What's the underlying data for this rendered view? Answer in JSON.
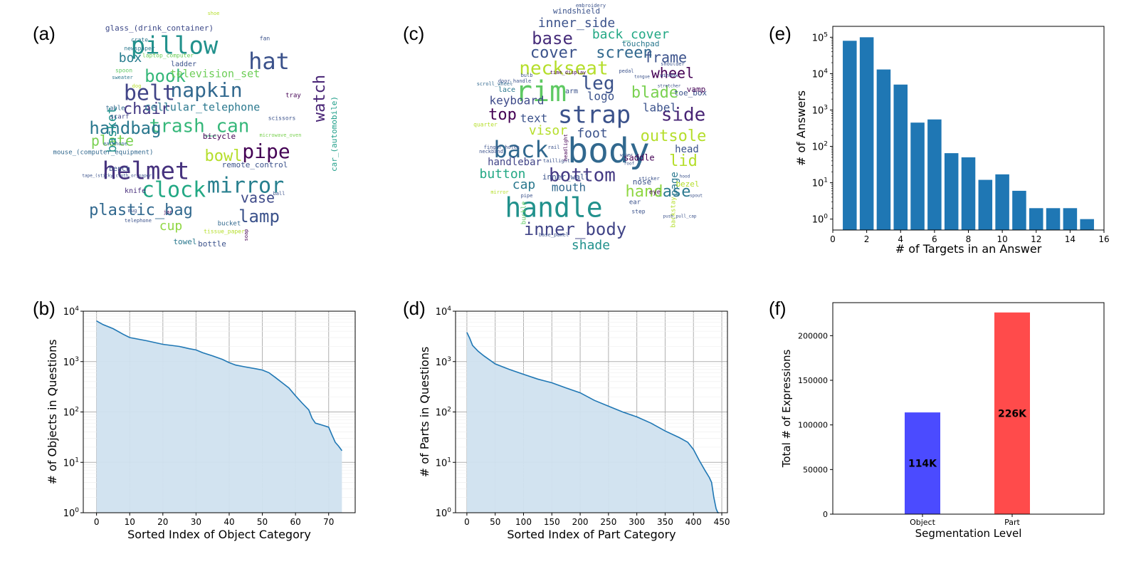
{
  "panels": [
    "(a)",
    "(b)",
    "(c)",
    "(d)",
    "(e)",
    "(f)"
  ],
  "wordcloud_objects": {
    "words": [
      {
        "t": "pillow",
        "size": 34,
        "color": "#21918c"
      },
      {
        "t": "hat",
        "size": 32,
        "color": "#3b528b"
      },
      {
        "t": "helmet",
        "size": 34,
        "color": "#46327e"
      },
      {
        "t": "mirror",
        "size": 30,
        "color": "#277f8e"
      },
      {
        "t": "napkin",
        "size": 28,
        "color": "#31688e"
      },
      {
        "t": "belt",
        "size": 30,
        "color": "#414487"
      },
      {
        "t": "clock",
        "size": 30,
        "color": "#22a884"
      },
      {
        "t": "trash_can",
        "size": 26,
        "color": "#35b779"
      },
      {
        "t": "pipe",
        "size": 28,
        "color": "#440154"
      },
      {
        "t": "book",
        "size": 24,
        "color": "#35b779"
      },
      {
        "t": "lamp",
        "size": 24,
        "color": "#3b528b"
      },
      {
        "t": "handbag",
        "size": 24,
        "color": "#2a788e"
      },
      {
        "t": "chair",
        "size": 22,
        "color": "#443983"
      },
      {
        "t": "watch",
        "size": 22,
        "color": "#482475"
      },
      {
        "t": "bowl",
        "size": 22,
        "color": "#b5de2b"
      },
      {
        "t": "plastic_bag",
        "size": 22,
        "color": "#31688e"
      },
      {
        "t": "vase",
        "size": 20,
        "color": "#3e4a89"
      },
      {
        "t": "plate",
        "size": 20,
        "color": "#7ad151"
      },
      {
        "t": "basket",
        "size": 18,
        "color": "#21918c"
      },
      {
        "t": "box",
        "size": 18,
        "color": "#287c8e"
      },
      {
        "t": "cup",
        "size": 18,
        "color": "#90d743"
      },
      {
        "t": "cellular_telephone",
        "size": 15,
        "color": "#2a788e"
      },
      {
        "t": "television_set",
        "size": 15,
        "color": "#6ece58"
      },
      {
        "t": "glass_(drink_container)",
        "size": 11,
        "color": "#3e4a89"
      },
      {
        "t": "car_(automobile)",
        "size": 11,
        "color": "#1f9e89"
      },
      {
        "t": "remote_control",
        "size": 11,
        "color": "#3b528b"
      },
      {
        "t": "bicycle",
        "size": 11,
        "color": "#440154"
      },
      {
        "t": "mouse_(computer_equipment)",
        "size": 9,
        "color": "#31688e"
      },
      {
        "t": "towel",
        "size": 11,
        "color": "#2a788e"
      },
      {
        "t": "bottle",
        "size": 11,
        "color": "#3b528b"
      },
      {
        "t": "knife",
        "size": 10,
        "color": "#472d7b"
      },
      {
        "t": "bench",
        "size": 10,
        "color": "#3b528b"
      },
      {
        "t": "table",
        "size": 9,
        "color": "#31688e"
      },
      {
        "t": "scarf",
        "size": 9,
        "color": "#414487"
      },
      {
        "t": "ladder",
        "size": 10,
        "color": "#3b528b"
      },
      {
        "t": "spoon",
        "size": 8,
        "color": "#5ec962"
      },
      {
        "t": "crate",
        "size": 8,
        "color": "#2a788e"
      },
      {
        "t": "newspaper",
        "size": 8,
        "color": "#2a788e"
      },
      {
        "t": "laptop_computer",
        "size": 8,
        "color": "#6ece58"
      },
      {
        "t": "fan",
        "size": 8,
        "color": "#3b528b"
      },
      {
        "t": "tray",
        "size": 9,
        "color": "#440154"
      },
      {
        "t": "scissors",
        "size": 8,
        "color": "#3b528b"
      },
      {
        "t": "earphone",
        "size": 7,
        "color": "#31688e"
      },
      {
        "t": "microwave_oven",
        "size": 7,
        "color": "#7ad151"
      },
      {
        "t": "tissue_paper",
        "size": 8,
        "color": "#b5de2b"
      },
      {
        "t": "bucket",
        "size": 9,
        "color": "#31688e"
      },
      {
        "t": "telephone",
        "size": 7,
        "color": "#3b528b"
      },
      {
        "t": "jar",
        "size": 7,
        "color": "#440154"
      },
      {
        "t": "sweater",
        "size": 7,
        "color": "#2a788e"
      },
      {
        "t": "dog",
        "size": 7,
        "color": "#b5de2b"
      },
      {
        "t": "mug",
        "size": 7,
        "color": "#3b528b"
      },
      {
        "t": "ball",
        "size": 7,
        "color": "#3b528b"
      },
      {
        "t": "soap",
        "size": 7,
        "color": "#440154"
      },
      {
        "t": "shoe",
        "size": 7,
        "color": "#b5de2b"
      },
      {
        "t": "tape_(sticky_cloth_or_paper)",
        "size": 6,
        "color": "#3b528b"
      }
    ]
  },
  "wordcloud_parts": {
    "words": [
      {
        "t": "body",
        "size": 48,
        "color": "#31688e"
      },
      {
        "t": "handle",
        "size": 38,
        "color": "#21918c"
      },
      {
        "t": "rim",
        "size": 40,
        "color": "#5ec962"
      },
      {
        "t": "strap",
        "size": 34,
        "color": "#3b528b"
      },
      {
        "t": "back",
        "size": 32,
        "color": "#31688e"
      },
      {
        "t": "neckseat",
        "size": 26,
        "color": "#b5de2b"
      },
      {
        "t": "bottom",
        "size": 26,
        "color": "#443983"
      },
      {
        "t": "side",
        "size": 26,
        "color": "#482475"
      },
      {
        "t": "leg",
        "size": 26,
        "color": "#3b528b"
      },
      {
        "t": "inner_body",
        "size": 24,
        "color": "#414487"
      },
      {
        "t": "base",
        "size": 24,
        "color": "#472d7b"
      },
      {
        "t": "cover",
        "size": 22,
        "color": "#3b528b"
      },
      {
        "t": "screen",
        "size": 22,
        "color": "#31688e"
      },
      {
        "t": "blade",
        "size": 22,
        "color": "#7ad151"
      },
      {
        "t": "top",
        "size": 22,
        "color": "#440154"
      },
      {
        "t": "outsole",
        "size": 22,
        "color": "#b5de2b"
      },
      {
        "t": "case",
        "size": 22,
        "color": "#2a788e"
      },
      {
        "t": "hand",
        "size": 22,
        "color": "#90d743"
      },
      {
        "t": "lid",
        "size": 22,
        "color": "#b5de2b"
      },
      {
        "t": "frame",
        "size": 20,
        "color": "#3b528b"
      },
      {
        "t": "wheel",
        "size": 20,
        "color": "#440154"
      },
      {
        "t": "inner_side",
        "size": 18,
        "color": "#3b528b"
      },
      {
        "t": "back_cover",
        "size": 18,
        "color": "#22a884"
      },
      {
        "t": "visor",
        "size": 18,
        "color": "#b5de2b"
      },
      {
        "t": "foot",
        "size": 18,
        "color": "#3b528b"
      },
      {
        "t": "button",
        "size": 18,
        "color": "#22a884"
      },
      {
        "t": "shade",
        "size": 18,
        "color": "#21918c"
      },
      {
        "t": "cap",
        "size": 18,
        "color": "#2a788e"
      },
      {
        "t": "keyboard",
        "size": 16,
        "color": "#3e4a89"
      },
      {
        "t": "text",
        "size": 16,
        "color": "#3b528b"
      },
      {
        "t": "label",
        "size": 16,
        "color": "#3b528b"
      },
      {
        "t": "mouth",
        "size": 16,
        "color": "#31688e"
      },
      {
        "t": "logo",
        "size": 16,
        "color": "#3b528b"
      },
      {
        "t": "head",
        "size": 14,
        "color": "#3b528b"
      },
      {
        "t": "handlebar",
        "size": 14,
        "color": "#414487"
      },
      {
        "t": "page",
        "size": 14,
        "color": "#2a788e"
      },
      {
        "t": "touchpad",
        "size": 11,
        "color": "#2a788e"
      },
      {
        "t": "windshield",
        "size": 11,
        "color": "#3b528b"
      },
      {
        "t": "saddle",
        "size": 12,
        "color": "#440154"
      },
      {
        "t": "nose",
        "size": 11,
        "color": "#3b528b"
      },
      {
        "t": "toe_box",
        "size": 11,
        "color": "#3b528b"
      },
      {
        "t": "vamp",
        "size": 11,
        "color": "#440154"
      },
      {
        "t": "bezel",
        "size": 11,
        "color": "#b5de2b"
      },
      {
        "t": "inner_wall",
        "size": 11,
        "color": "#3b528b"
      },
      {
        "t": "arm",
        "size": 10,
        "color": "#3b528b"
      },
      {
        "t": "lace",
        "size": 10,
        "color": "#2a788e"
      },
      {
        "t": "eye",
        "size": 9,
        "color": "#440154"
      },
      {
        "t": "buckle",
        "size": 9,
        "color": "#5ec962"
      },
      {
        "t": "backstay",
        "size": 9,
        "color": "#b5de2b"
      },
      {
        "t": "ear",
        "size": 9,
        "color": "#3b528b"
      },
      {
        "t": "step",
        "size": 8,
        "color": "#3b528b"
      },
      {
        "t": "quarter",
        "size": 8,
        "color": "#b5de2b"
      },
      {
        "t": "neckband",
        "size": 7,
        "color": "#3b528b"
      },
      {
        "t": "rail",
        "size": 7,
        "color": "#3b528b"
      },
      {
        "t": "taillight",
        "size": 7,
        "color": "#3b528b"
      },
      {
        "t": "mirror",
        "size": 7,
        "color": "#b5de2b"
      },
      {
        "t": "pipe",
        "size": 7,
        "color": "#3b528b"
      },
      {
        "t": "finger_holes",
        "size": 7,
        "color": "#3b528b"
      },
      {
        "t": "scroll_wheel",
        "size": 7,
        "color": "#31688e"
      },
      {
        "t": "headlight",
        "size": 7,
        "color": "#440154"
      },
      {
        "t": "base_panel",
        "size": 7,
        "color": "#3b528b"
      },
      {
        "t": "time_display",
        "size": 7,
        "color": "#440154"
      },
      {
        "t": "door_handle",
        "size": 7,
        "color": "#3b528b"
      },
      {
        "t": "bulb",
        "size": 7,
        "color": "#3b528b"
      },
      {
        "t": "shoulder",
        "size": 7,
        "color": "#3b528b"
      },
      {
        "t": "tongue",
        "size": 6,
        "color": "#3b528b"
      },
      {
        "t": "stretcher",
        "size": 6,
        "color": "#3b528b"
      },
      {
        "t": "spout",
        "size": 6,
        "color": "#3b528b"
      },
      {
        "t": "push_pull_cap",
        "size": 6,
        "color": "#3b528b"
      },
      {
        "t": "embroidery",
        "size": 7,
        "color": "#3b528b"
      },
      {
        "t": "pedal",
        "size": 7,
        "color": "#3b528b"
      },
      {
        "t": "window",
        "size": 7,
        "color": "#3b528b"
      },
      {
        "t": "hood",
        "size": 6,
        "color": "#3b528b"
      },
      {
        "t": "sticker",
        "size": 7,
        "color": "#3b528b"
      },
      {
        "t": "wiper",
        "size": 6,
        "color": "#3b528b"
      },
      {
        "t": "roof",
        "size": 6,
        "color": "#3b528b"
      }
    ]
  },
  "chart_data": [
    {
      "id": "b",
      "type": "area",
      "xlabel": "Sorted Index of Object Category",
      "ylabel": "# of Objects in Questions",
      "xlim": [
        -4,
        78
      ],
      "xticks": [
        0,
        10,
        20,
        30,
        40,
        50,
        60,
        70
      ],
      "ylim_log10": [
        0,
        4
      ],
      "log_scale": "y",
      "grid": true,
      "x": [
        0,
        2,
        5,
        8,
        10,
        15,
        20,
        25,
        28,
        30,
        32,
        35,
        38,
        40,
        42,
        45,
        48,
        50,
        52,
        54,
        56,
        58,
        60,
        62,
        64,
        65,
        66,
        68,
        70,
        71,
        72,
        73,
        74
      ],
      "y": [
        6400,
        5400,
        4500,
        3500,
        3000,
        2600,
        2200,
        2000,
        1800,
        1700,
        1500,
        1300,
        1100,
        950,
        850,
        780,
        720,
        680,
        600,
        480,
        380,
        300,
        210,
        150,
        110,
        75,
        60,
        55,
        50,
        35,
        25,
        21,
        17
      ],
      "color": "#1f77b4",
      "fill": "#d0e1ef"
    },
    {
      "id": "d",
      "type": "area",
      "xlabel": "Sorted Index of Part Category",
      "ylabel": "# of Parts in Questions",
      "xlim": [
        -20,
        460
      ],
      "xticks": [
        0,
        50,
        100,
        150,
        200,
        250,
        300,
        350,
        400,
        450
      ],
      "ylim_log10": [
        0,
        4
      ],
      "log_scale": "y",
      "grid": true,
      "x": [
        0,
        5,
        10,
        20,
        30,
        50,
        75,
        100,
        125,
        150,
        175,
        200,
        225,
        250,
        275,
        300,
        325,
        350,
        375,
        390,
        400,
        410,
        420,
        428,
        432,
        436,
        440,
        443,
        445
      ],
      "y": [
        3800,
        2900,
        2100,
        1600,
        1300,
        900,
        700,
        560,
        450,
        380,
        300,
        240,
        170,
        130,
        100,
        80,
        60,
        42,
        31,
        25,
        18,
        11,
        7,
        5,
        4,
        2,
        1.2,
        1,
        0.8
      ],
      "color": "#1f77b4",
      "fill": "#d0e1ef"
    },
    {
      "id": "e",
      "type": "bar",
      "xlabel": "# of Targets in an Answer",
      "ylabel": "# of Answers",
      "log_scale": "y",
      "xlim": [
        0,
        16
      ],
      "xticks": [
        0,
        2,
        4,
        6,
        8,
        10,
        12,
        14,
        16
      ],
      "ylim_log10": [
        -0.3,
        5.3
      ],
      "yticks": [
        "10^0",
        "10^1",
        "10^2",
        "10^3",
        "10^4",
        "10^5"
      ],
      "x": [
        1,
        2,
        3,
        4,
        5,
        6,
        7,
        8,
        9,
        10,
        11,
        12,
        13,
        14,
        15
      ],
      "values": [
        80000,
        100000,
        13000,
        5000,
        450,
        550,
        65,
        50,
        12,
        17,
        6,
        2,
        2,
        2,
        1
      ],
      "color": "#1f77b4"
    },
    {
      "id": "f",
      "type": "bar",
      "xlabel": "Segmentation Level",
      "ylabel": "Total # of Expressions",
      "categories": [
        "Object",
        "Part"
      ],
      "values": [
        114000,
        226000
      ],
      "data_labels": [
        "114K",
        "226K"
      ],
      "colors": [
        "#4b4bff",
        "#ff4b4b"
      ],
      "ylim": [
        0,
        237000
      ],
      "yticks": [
        0,
        50000,
        100000,
        150000,
        200000
      ]
    }
  ]
}
